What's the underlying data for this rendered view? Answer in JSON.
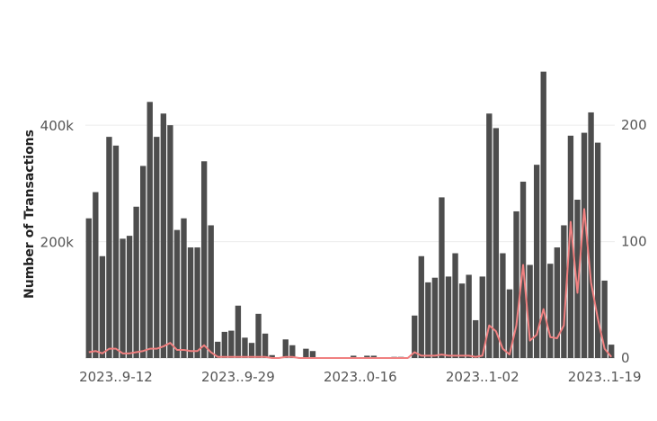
{
  "chart_data": {
    "type": "bar",
    "ylabel": "Number of Transactions",
    "ylim_left": [
      0,
      510000
    ],
    "ylim_right": [
      0,
      255
    ],
    "grid": true,
    "x_tick_labels": [
      {
        "label": "2023..9-12",
        "index": 4
      },
      {
        "label": "2023..9-29",
        "index": 22
      },
      {
        "label": "2023..0-16",
        "index": 40
      },
      {
        "label": "2023..1-02",
        "index": 58
      },
      {
        "label": "2023..1-19",
        "index": 76
      }
    ],
    "y_ticks_left": [
      {
        "value": 200000,
        "label": "200k"
      },
      {
        "value": 400000,
        "label": "400k"
      }
    ],
    "y_ticks_right": [
      {
        "value": 0,
        "label": "0"
      },
      {
        "value": 100,
        "label": "100"
      },
      {
        "value": 200,
        "label": "200"
      }
    ],
    "series": [
      {
        "axis": "left",
        "kind": "bar",
        "color": "#4d4d4d",
        "values": [
          240000,
          285000,
          175000,
          380000,
          365000,
          205000,
          210000,
          260000,
          330000,
          440000,
          380000,
          420000,
          400000,
          220000,
          240000,
          190000,
          190000,
          338000,
          228000,
          28000,
          45000,
          47000,
          90000,
          35000,
          26000,
          76000,
          42000,
          5000,
          0,
          32000,
          22000,
          0,
          16000,
          12000,
          0,
          0,
          0,
          0,
          0,
          4000,
          0,
          4000,
          4000,
          0,
          0,
          2000,
          2000,
          0,
          73000,
          175000,
          130000,
          138000,
          276000,
          140000,
          180000,
          128000,
          143000,
          65000,
          140000,
          420000,
          395000,
          180000,
          118000,
          252000,
          303000,
          160000,
          332000,
          492000,
          162000,
          190000,
          228000,
          382000,
          272000,
          387000,
          422000,
          370000,
          133000,
          23000
        ]
      },
      {
        "axis": "right",
        "kind": "line",
        "color": "#f08080",
        "values": [
          5,
          6,
          4,
          8,
          8,
          4,
          4,
          5,
          6,
          8,
          8,
          10,
          13,
          7,
          7,
          6,
          6,
          11,
          5,
          1,
          1,
          1,
          1,
          1,
          1,
          1,
          1,
          0,
          0,
          1,
          1,
          0,
          0,
          0,
          0,
          0,
          0,
          0,
          0,
          0,
          0,
          0,
          0,
          0,
          0,
          0,
          0,
          0,
          5,
          2,
          2,
          2,
          3,
          2,
          2,
          2,
          2,
          1,
          2,
          28,
          23,
          8,
          3,
          28,
          80,
          15,
          20,
          42,
          18,
          17,
          28,
          117,
          56,
          128,
          65,
          34,
          8,
          1
        ]
      }
    ]
  }
}
